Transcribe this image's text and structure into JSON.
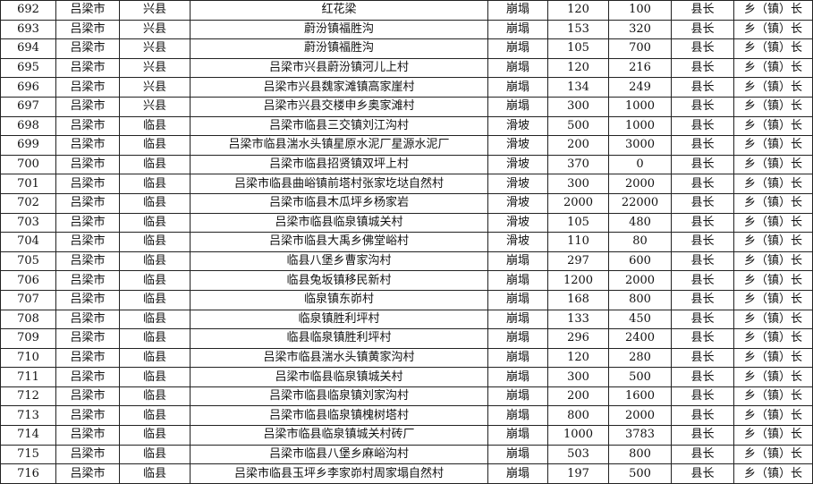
{
  "rows": [
    [
      "692",
      "吕梁市",
      "兴县",
      "红花梁",
      "崩塌",
      "120",
      "100",
      "县长",
      "乡（镇）长"
    ],
    [
      "693",
      "吕梁市",
      "兴县",
      "蔚汾镇福胜沟",
      "崩塌",
      "153",
      "320",
      "县长",
      "乡（镇）长"
    ],
    [
      "694",
      "吕梁市",
      "兴县",
      "蔚汾镇福胜沟",
      "崩塌",
      "105",
      "700",
      "县长",
      "乡（镇）长"
    ],
    [
      "695",
      "吕梁市",
      "兴县",
      "吕梁市兴县蔚汾镇河儿上村",
      "崩塌",
      "120",
      "216",
      "县长",
      "乡（镇）长"
    ],
    [
      "696",
      "吕梁市",
      "兴县",
      "吕梁市兴县魏家滩镇高家崖村",
      "崩塌",
      "134",
      "249",
      "县长",
      "乡（镇）长"
    ],
    [
      "697",
      "吕梁市",
      "兴县",
      "吕梁市兴县交楼申乡奥家滩村",
      "崩塌",
      "300",
      "1000",
      "县长",
      "乡（镇）长"
    ],
    [
      "698",
      "吕梁市",
      "临县",
      "吕梁市临县三交镇刘江沟村",
      "滑坡",
      "500",
      "1000",
      "县长",
      "乡（镇）长"
    ],
    [
      "699",
      "吕梁市",
      "临县",
      "吕梁市临县湍水头镇星原水泥厂星源水泥厂",
      "滑坡",
      "200",
      "3000",
      "县长",
      "乡（镇）长"
    ],
    [
      "700",
      "吕梁市",
      "临县",
      "吕梁市临县招贤镇双坪上村",
      "滑坡",
      "370",
      "0",
      "县长",
      "乡（镇）长"
    ],
    [
      "701",
      "吕梁市",
      "临县",
      "吕梁市临县曲峪镇前塔村张家圪垯自然村",
      "滑坡",
      "300",
      "2000",
      "县长",
      "乡（镇）长"
    ],
    [
      "702",
      "吕梁市",
      "临县",
      "吕梁市临县木瓜坪乡杨家岩",
      "滑坡",
      "2000",
      "22000",
      "县长",
      "乡（镇）长"
    ],
    [
      "703",
      "吕梁市",
      "临县",
      "吕梁市临县临泉镇城关村",
      "滑坡",
      "105",
      "480",
      "县长",
      "乡（镇）长"
    ],
    [
      "704",
      "吕梁市",
      "临县",
      "吕梁市临县大禹乡佛堂峪村",
      "滑坡",
      "110",
      "80",
      "县长",
      "乡（镇）长"
    ],
    [
      "705",
      "吕梁市",
      "临县",
      "临县八堡乡曹家沟村",
      "崩塌",
      "297",
      "600",
      "县长",
      "乡（镇）长"
    ],
    [
      "706",
      "吕梁市",
      "临县",
      "临县兔坂镇移民新村",
      "崩塌",
      "1200",
      "2000",
      "县长",
      "乡（镇）长"
    ],
    [
      "707",
      "吕梁市",
      "临县",
      "临泉镇东峁村",
      "崩塌",
      "168",
      "800",
      "县长",
      "乡（镇）长"
    ],
    [
      "708",
      "吕梁市",
      "临县",
      "临泉镇胜利坪村",
      "崩塌",
      "133",
      "450",
      "县长",
      "乡（镇）长"
    ],
    [
      "709",
      "吕梁市",
      "临县",
      "临县临泉镇胜利坪村",
      "崩塌",
      "296",
      "2400",
      "县长",
      "乡（镇）长"
    ],
    [
      "710",
      "吕梁市",
      "临县",
      "吕梁市临县湍水头镇黄家沟村",
      "崩塌",
      "120",
      "280",
      "县长",
      "乡（镇）长"
    ],
    [
      "711",
      "吕梁市",
      "临县",
      "吕梁市临县临泉镇城关村",
      "崩塌",
      "300",
      "500",
      "县长",
      "乡（镇）长"
    ],
    [
      "712",
      "吕梁市",
      "临县",
      "吕梁市临县临泉镇刘家沟村",
      "崩塌",
      "200",
      "1600",
      "县长",
      "乡（镇）长"
    ],
    [
      "713",
      "吕梁市",
      "临县",
      "吕梁市临县临泉镇槐树塔村",
      "崩塌",
      "800",
      "2000",
      "县长",
      "乡（镇）长"
    ],
    [
      "714",
      "吕梁市",
      "临县",
      "吕梁市临县临泉镇城关村砖厂",
      "崩塌",
      "1000",
      "3783",
      "县长",
      "乡（镇）长"
    ],
    [
      "715",
      "吕梁市",
      "临县",
      "吕梁市临县八堡乡麻峪沟村",
      "崩塌",
      "503",
      "800",
      "县长",
      "乡（镇）长"
    ],
    [
      "716",
      "吕梁市",
      "临县",
      "吕梁市临县玉坪乡李家峁村周家塌自然村",
      "崩塌",
      "197",
      "500",
      "县长",
      "乡（镇）长"
    ]
  ]
}
